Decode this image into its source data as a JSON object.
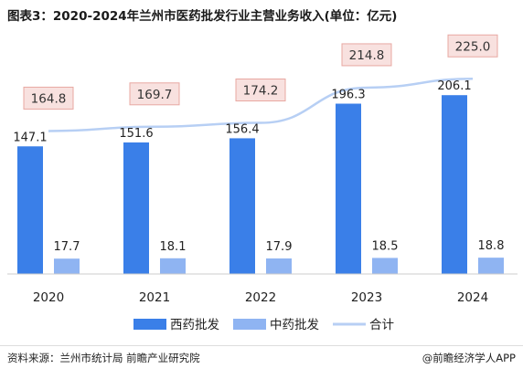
{
  "title": "图表3：2020-2024年兰州市医药批发行业主营业务收入(单位：亿元)",
  "source": "资料来源：兰州市统计局 前瞻产业研究院",
  "brand": "@前瞻经济学人APP",
  "colors": {
    "west_medicine": "#3a7fe8",
    "chinese_medicine": "#8fb4f2",
    "total": "#b7cff4",
    "total_label_bg": "#f8e1df",
    "total_label_border": "#e8a8a2"
  },
  "chart_data": {
    "type": "bar",
    "categories": [
      "2020",
      "2021",
      "2022",
      "2023",
      "2024"
    ],
    "series": [
      {
        "name": "西药批发",
        "type": "bar",
        "values": [
          147.1,
          151.6,
          156.4,
          196.3,
          206.1
        ]
      },
      {
        "name": "中药批发",
        "type": "bar",
        "values": [
          17.7,
          18.1,
          17.9,
          18.5,
          18.8
        ]
      },
      {
        "name": "合计",
        "type": "line",
        "values": [
          164.8,
          169.7,
          174.2,
          214.8,
          225.0
        ]
      }
    ],
    "value_labels": {
      "west": [
        "147.1",
        "151.6",
        "156.4",
        "196.3",
        "206.1"
      ],
      "chinese": [
        "17.7",
        "18.1",
        "17.9",
        "18.5",
        "18.8"
      ],
      "total": [
        "164.8",
        "169.7",
        "174.2",
        "214.8",
        "225.0"
      ]
    },
    "ylim": [
      0,
      240
    ],
    "legend_position": "bottom",
    "grid": false
  }
}
